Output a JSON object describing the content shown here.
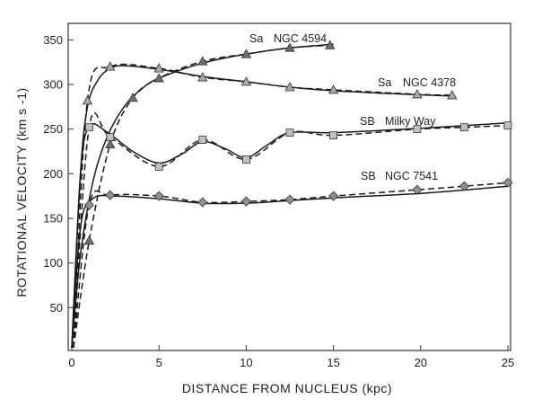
{
  "chart_data": {
    "type": "line",
    "xlabel": "DISTANCE FROM NUCLEUS (kpc)",
    "ylabel": "ROTATIONAL VELOCITY (km s -1)",
    "xlim": [
      0,
      25
    ],
    "ylim": [
      0,
      360
    ],
    "x_ticks": [
      "0",
      "5",
      "10",
      "15",
      "20",
      "25"
    ],
    "y_ticks": [
      "50",
      "100",
      "150",
      "200",
      "250",
      "300",
      "350"
    ],
    "grid": false,
    "legend": "none",
    "series": [
      {
        "name": "Sa NGC 4594",
        "marker": "triangle",
        "color": "#6f6f6f",
        "label_type": "Sa",
        "label_name": "NGC 4594",
        "points": [
          [
            0.1,
            5
          ],
          [
            1.0,
            125
          ],
          [
            2.2,
            233
          ],
          [
            3.5,
            285
          ],
          [
            5.0,
            307
          ],
          [
            7.5,
            326
          ],
          [
            10.0,
            334
          ],
          [
            12.5,
            341
          ],
          [
            14.8,
            344
          ]
        ],
        "solid": [
          [
            0,
            5
          ],
          [
            0.5,
            110
          ],
          [
            1.2,
            190
          ],
          [
            2.0,
            240
          ],
          [
            3.0,
            275
          ],
          [
            4.0,
            295
          ],
          [
            5.0,
            307
          ],
          [
            7.5,
            324
          ],
          [
            10.0,
            334
          ],
          [
            12.5,
            341
          ],
          [
            15.0,
            345
          ]
        ]
      },
      {
        "name": "Sa NGC 4378",
        "marker": "triangle",
        "color": "#a9a9a9",
        "label_type": "Sa",
        "label_name": "NGC 4378",
        "points": [
          [
            0.1,
            5
          ],
          [
            0.9,
            282
          ],
          [
            2.2,
            320
          ],
          [
            5.0,
            318
          ],
          [
            7.5,
            308
          ],
          [
            10.0,
            303
          ],
          [
            12.5,
            297
          ],
          [
            15.0,
            294
          ],
          [
            19.8,
            289
          ],
          [
            21.8,
            288
          ]
        ],
        "solid": [
          [
            0,
            5
          ],
          [
            0.5,
            200
          ],
          [
            0.9,
            275
          ],
          [
            1.5,
            305
          ],
          [
            2.2,
            318
          ],
          [
            3.0,
            321
          ],
          [
            5.0,
            317
          ],
          [
            7.5,
            309
          ],
          [
            10.0,
            303
          ],
          [
            12.5,
            297
          ],
          [
            15.0,
            293
          ],
          [
            18.0,
            290
          ],
          [
            21.8,
            287
          ]
        ]
      },
      {
        "name": "SB Milky Way",
        "marker": "square",
        "color": "#c0c0c0",
        "label_type": "SB",
        "label_name": "Milky Way",
        "points": [
          [
            0.1,
            5
          ],
          [
            1.0,
            252
          ],
          [
            2.2,
            241
          ],
          [
            5.0,
            208
          ],
          [
            7.5,
            238
          ],
          [
            10.0,
            216
          ],
          [
            12.5,
            246
          ],
          [
            15.0,
            243
          ],
          [
            19.8,
            250
          ],
          [
            22.5,
            252
          ],
          [
            25.0,
            254
          ]
        ],
        "solid": [
          [
            0,
            5
          ],
          [
            0.5,
            200
          ],
          [
            1.0,
            253
          ],
          [
            2.0,
            247
          ],
          [
            3.5,
            225
          ],
          [
            5.0,
            212
          ],
          [
            6.3,
            222
          ],
          [
            7.5,
            236
          ],
          [
            8.8,
            228
          ],
          [
            10.0,
            218
          ],
          [
            11.2,
            232
          ],
          [
            12.5,
            246
          ],
          [
            15.0,
            246
          ],
          [
            20.0,
            251
          ],
          [
            25.0,
            257
          ]
        ]
      },
      {
        "name": "SB NGC 7541",
        "marker": "diamond",
        "color": "#909090",
        "label_type": "SB",
        "label_name": "NGC 7541",
        "points": [
          [
            0.1,
            5
          ],
          [
            1.0,
            165
          ],
          [
            2.2,
            176
          ],
          [
            5.0,
            175
          ],
          [
            7.5,
            168
          ],
          [
            10.0,
            169
          ],
          [
            12.5,
            171
          ],
          [
            15.0,
            175
          ],
          [
            19.8,
            182
          ],
          [
            22.5,
            186
          ],
          [
            25.0,
            190
          ]
        ],
        "solid": [
          [
            0,
            5
          ],
          [
            0.5,
            140
          ],
          [
            1.2,
            172
          ],
          [
            2.5,
            175
          ],
          [
            5.0,
            172
          ],
          [
            7.5,
            167
          ],
          [
            10.0,
            167
          ],
          [
            12.5,
            170
          ],
          [
            15.0,
            173
          ],
          [
            20.0,
            178
          ],
          [
            25.0,
            186
          ]
        ]
      }
    ]
  }
}
